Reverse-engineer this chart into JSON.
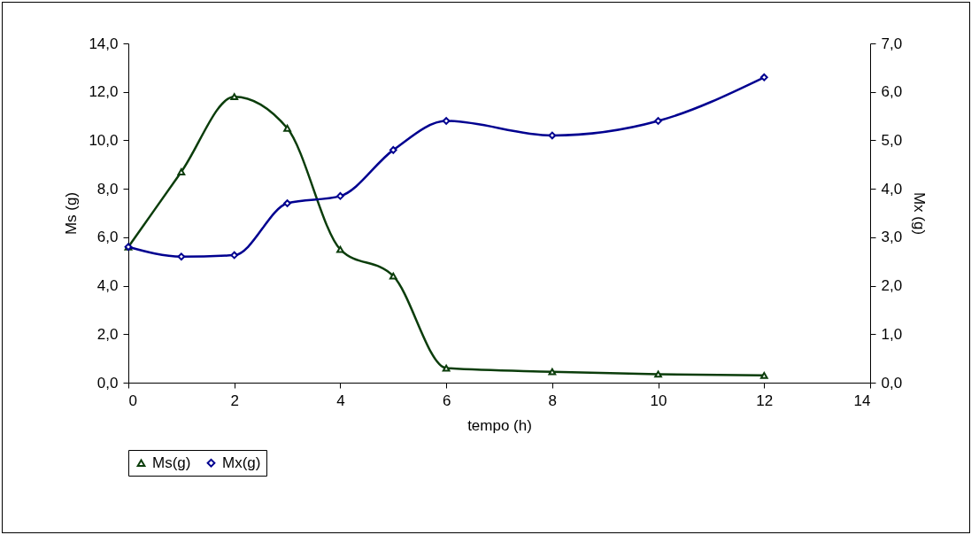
{
  "chart_data": {
    "type": "line",
    "xlabel": "tempo (h)",
    "ylabel": "Ms (g)",
    "y2label": "Mx (g)",
    "xlim": [
      0,
      14
    ],
    "xticks": [
      0,
      2,
      4,
      6,
      8,
      10,
      12,
      14
    ],
    "ylim": [
      0,
      14
    ],
    "yticks": [
      {
        "value": 0,
        "label": "0,0"
      },
      {
        "value": 2,
        "label": "2,0"
      },
      {
        "value": 4,
        "label": "4,0"
      },
      {
        "value": 6,
        "label": "6,0"
      },
      {
        "value": 8,
        "label": "8,0"
      },
      {
        "value": 10,
        "label": "10,0"
      },
      {
        "value": 12,
        "label": "12,0"
      },
      {
        "value": 14,
        "label": "14,0"
      }
    ],
    "y2lim": [
      0,
      7
    ],
    "y2ticks": [
      {
        "value": 0,
        "label": "0,0"
      },
      {
        "value": 1,
        "label": "1,0"
      },
      {
        "value": 2,
        "label": "2,0"
      },
      {
        "value": 3,
        "label": "3,0"
      },
      {
        "value": 4,
        "label": "4,0"
      },
      {
        "value": 5,
        "label": "5,0"
      },
      {
        "value": 6,
        "label": "6,0"
      },
      {
        "value": 7,
        "label": "7,0"
      }
    ],
    "x": [
      0,
      1,
      2,
      3,
      4,
      5,
      6,
      8,
      10,
      12
    ],
    "series": [
      {
        "name": "Ms(g)",
        "color": "#0b3d0b",
        "marker": "triangle",
        "values": [
          5.6,
          8.7,
          11.8,
          10.5,
          5.5,
          4.4,
          0.6,
          0.45,
          0.35,
          0.3
        ]
      },
      {
        "name": "Mx(g)",
        "color": "#000090",
        "marker": "diamond",
        "axis": "y2",
        "values": [
          2.8,
          2.6,
          2.63,
          3.7,
          3.85,
          4.8,
          5.4,
          5.1,
          5.4,
          6.3
        ]
      }
    ],
    "grid": false,
    "legend": "bottom"
  }
}
